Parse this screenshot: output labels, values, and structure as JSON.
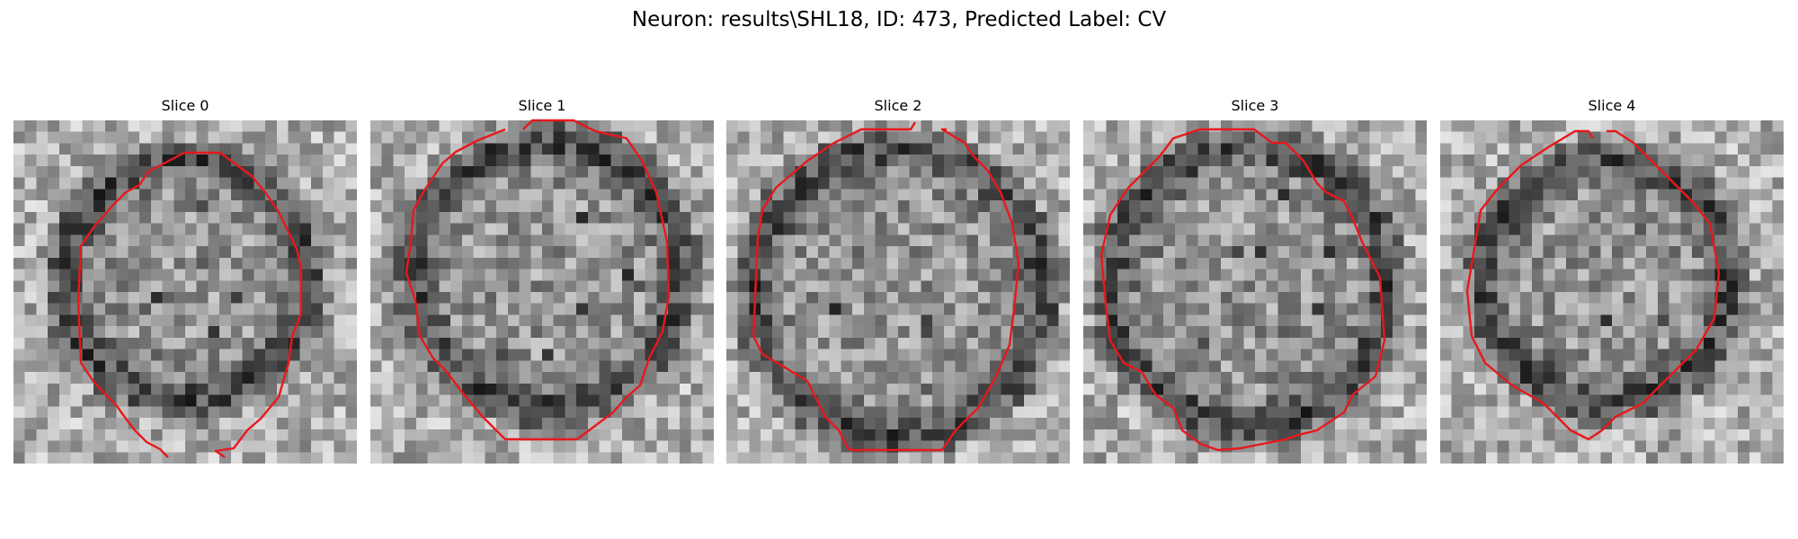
{
  "figure": {
    "title": "Neuron: results\\SHL18, ID: 473, Predicted Label: CV"
  },
  "panels": [
    {
      "title": "Slice 0"
    },
    {
      "title": "Slice 1"
    },
    {
      "title": "Slice 2"
    },
    {
      "title": "Slice 3"
    },
    {
      "title": "Slice 4"
    }
  ],
  "colors": {
    "contour": "#e8181c",
    "background": "#ffffff"
  }
}
